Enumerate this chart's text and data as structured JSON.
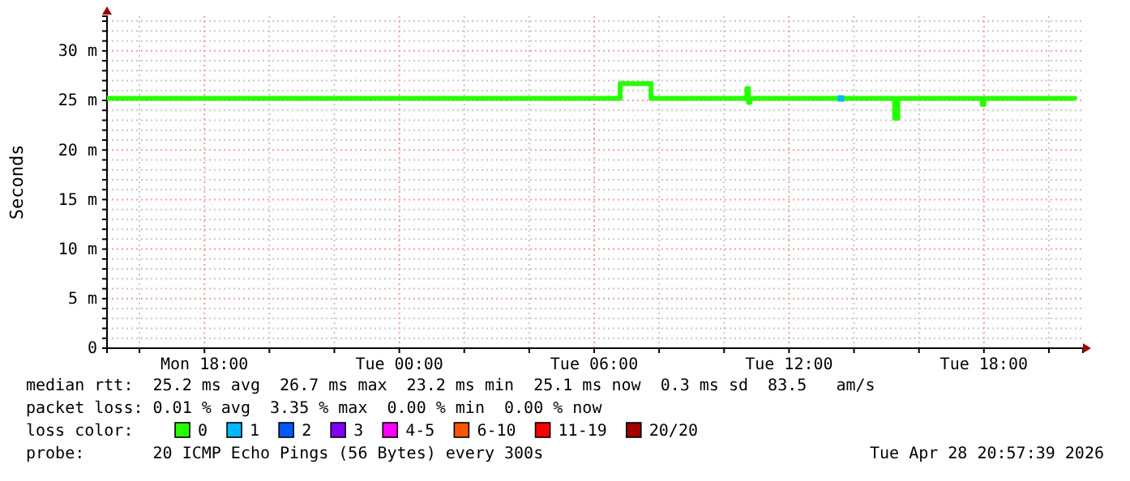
{
  "chart_data": {
    "type": "line",
    "ylabel": "Seconds",
    "xlim": [
      "2026-04-27T15:00",
      "2026-04-28T21:03"
    ],
    "ylim": [
      0,
      33.5
    ],
    "xticks": [
      {
        "value": "2026-04-27T16:00",
        "label": null
      },
      {
        "value": "2026-04-27T18:00",
        "label": "Mon 18:00"
      },
      {
        "value": "2026-04-27T20:00",
        "label": null
      },
      {
        "value": "2026-04-27T22:00",
        "label": null
      },
      {
        "value": "2026-04-28T00:00",
        "label": "Tue 00:00"
      },
      {
        "value": "2026-04-28T02:00",
        "label": null
      },
      {
        "value": "2026-04-28T04:00",
        "label": null
      },
      {
        "value": "2026-04-28T06:00",
        "label": "Tue 06:00"
      },
      {
        "value": "2026-04-28T08:00",
        "label": null
      },
      {
        "value": "2026-04-28T10:00",
        "label": null
      },
      {
        "value": "2026-04-28T12:00",
        "label": "Tue 12:00"
      },
      {
        "value": "2026-04-28T14:00",
        "label": null
      },
      {
        "value": "2026-04-28T16:00",
        "label": null
      },
      {
        "value": "2026-04-28T18:00",
        "label": "Tue 18:00"
      },
      {
        "value": "2026-04-28T20:00",
        "label": null
      }
    ],
    "yticks": [
      0,
      {
        "value": 1,
        "label": null
      },
      {
        "value": 2,
        "label": null
      },
      {
        "value": 3,
        "label": null
      },
      {
        "value": 4,
        "label": null
      },
      {
        "value": 5,
        "label": "5 m"
      },
      {
        "value": 6,
        "label": null
      },
      {
        "value": 7,
        "label": null
      },
      {
        "value": 8,
        "label": null
      },
      {
        "value": 9,
        "label": null
      },
      {
        "value": 10,
        "label": "10 m"
      },
      {
        "value": 11,
        "label": null
      },
      {
        "value": 12,
        "label": null
      },
      {
        "value": 13,
        "label": null
      },
      {
        "value": 14,
        "label": null
      },
      {
        "value": 15,
        "label": "15 m"
      },
      {
        "value": 16,
        "label": null
      },
      {
        "value": 17,
        "label": null
      },
      {
        "value": 18,
        "label": null
      },
      {
        "value": 19,
        "label": null
      },
      {
        "value": 20,
        "label": "20 m"
      },
      {
        "value": 21,
        "label": null
      },
      {
        "value": 22,
        "label": null
      },
      {
        "value": 23,
        "label": null
      },
      {
        "value": 24,
        "label": null
      },
      {
        "value": 25,
        "label": "25 m"
      },
      {
        "value": 26,
        "label": null
      },
      {
        "value": 27,
        "label": null
      },
      {
        "value": 28,
        "label": null
      },
      {
        "value": 29,
        "label": null
      },
      {
        "value": 30,
        "label": "30 m"
      },
      {
        "value": 31,
        "label": null
      },
      {
        "value": 32,
        "label": null
      },
      {
        "value": 33,
        "label": null
      }
    ],
    "grid": true,
    "legend": "bottom",
    "legend_title": "loss color:",
    "line_style": "solid",
    "series": [
      {
        "name": "0",
        "color": "#26ff00",
        "x": [
          "2026-04-27T15:00",
          "2026-04-27T17:00",
          "2026-04-27T19:00",
          "2026-04-27T21:00",
          "2026-04-27T23:00",
          "2026-04-28T01:00",
          "2026-04-28T03:00",
          "2026-04-28T05:00",
          "2026-04-28T06:45",
          "2026-04-28T06:48",
          "2026-04-28T07:42",
          "2026-04-28T07:45",
          "2026-04-28T09:00",
          "2026-04-28T10:36",
          "2026-04-28T10:42",
          "2026-04-28T10:45",
          "2026-04-28T10:48",
          "2026-04-28T12:00",
          "2026-04-28T13:30",
          "2026-04-28T15:12",
          "2026-04-28T15:15",
          "2026-04-28T15:18",
          "2026-04-28T15:21",
          "2026-04-28T17:00",
          "2026-04-28T17:57",
          "2026-04-28T18:00",
          "2026-04-28T19:00",
          "2026-04-28T20:48"
        ],
        "values": [
          25.2,
          25.2,
          25.2,
          25.2,
          25.2,
          25.2,
          25.2,
          25.2,
          25.2,
          26.7,
          26.7,
          25.2,
          25.2,
          25.2,
          26.2,
          24.8,
          25.2,
          25.2,
          25.2,
          25.2,
          23.2,
          23.2,
          25.2,
          25.2,
          24.6,
          25.2,
          25.2,
          25.1
        ]
      },
      {
        "name": "1",
        "color": "#00b8ff",
        "type": "scatter",
        "marker": "square",
        "x": [
          "2026-04-28T13:36"
        ],
        "values": [
          25.2
        ]
      },
      {
        "name": "2",
        "color": "#0059ff"
      },
      {
        "name": "3",
        "color": "#7e00ff"
      },
      {
        "name": "4-5",
        "color": "#ff00ff"
      },
      {
        "name": "6-10",
        "color": "#ff5500"
      },
      {
        "name": "11-19",
        "color": "#ff0000"
      },
      {
        "name": "20/20",
        "color": "#a10000"
      }
    ],
    "annotations": [
      "median rtt:  25.2 ms avg  26.7 ms max  23.2 ms min  25.1 ms now  0.3 ms sd  83.5   am/s",
      "packet loss: 0.01 % avg  3.35 % max  0.00 % min  0.00 % now",
      "probe:       20 ICMP Echo Pings (56 Bytes) every 300s",
      "Tue Apr 28 20:57:39 2026"
    ]
  }
}
